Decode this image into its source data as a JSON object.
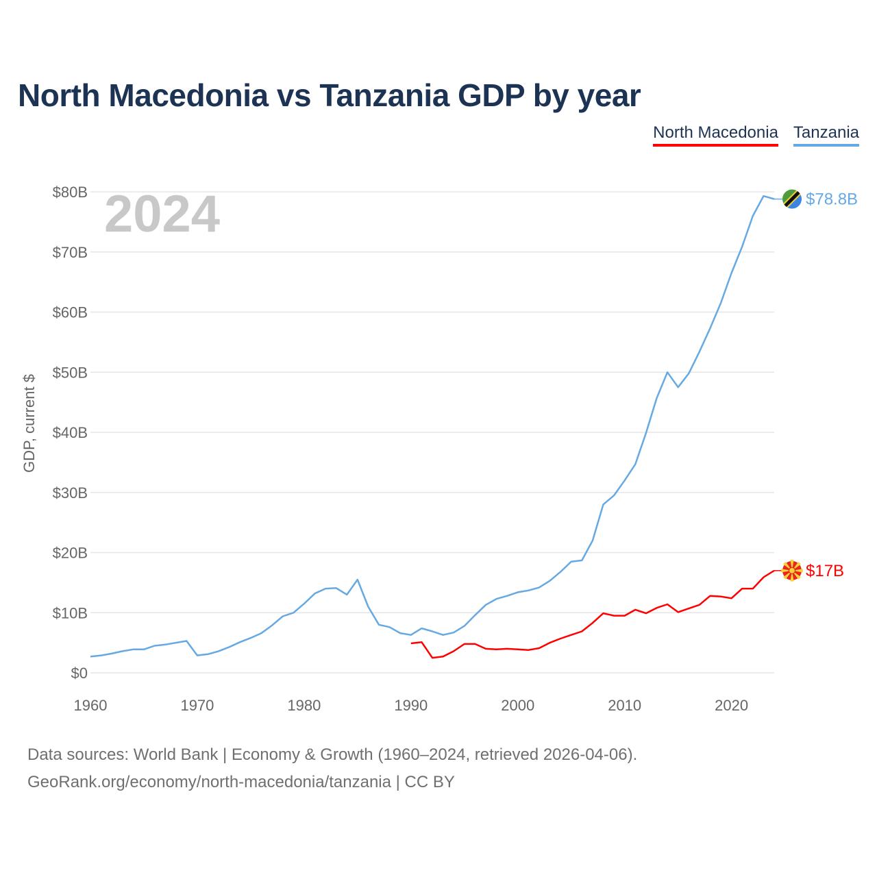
{
  "title": "North Macedonia vs Tanzania GDP by year",
  "legend": [
    {
      "name": "North Macedonia",
      "color": "#ff0000"
    },
    {
      "name": "Tanzania",
      "color": "#66a9e2"
    }
  ],
  "source": {
    "line1": "Data sources: World Bank | Economy & Growth (1960–2024, retrieved 2026-04-06).",
    "line2": "GeoRank.org/economy/north-macedonia/tanzania | CC BY"
  },
  "chart_data": {
    "type": "line",
    "title": "North Macedonia vs Tanzania GDP by year",
    "xlabel": "",
    "ylabel": "GDP, current $",
    "year_watermark": "2024",
    "xlim": [
      1960,
      2024
    ],
    "ylim": [
      0,
      80
    ],
    "y_unit": "billion USD",
    "x_ticks": [
      1960,
      1970,
      1980,
      1990,
      2000,
      2010,
      2020
    ],
    "y_ticks": [
      {
        "value": 0,
        "label": "$0"
      },
      {
        "value": 10,
        "label": "$10B"
      },
      {
        "value": 20,
        "label": "$20B"
      },
      {
        "value": 30,
        "label": "$30B"
      },
      {
        "value": 40,
        "label": "$40B"
      },
      {
        "value": 50,
        "label": "$50B"
      },
      {
        "value": 60,
        "label": "$60B"
      },
      {
        "value": 70,
        "label": "$70B"
      },
      {
        "value": 80,
        "label": "$80B"
      }
    ],
    "grid": true,
    "legend_position": "top-right",
    "series": [
      {
        "name": "Tanzania",
        "color": "#66a9e2",
        "end_label": "$78.8B",
        "flag_icon": "tanzania-flag-icon",
        "x": [
          1960,
          1961,
          1962,
          1963,
          1964,
          1965,
          1966,
          1967,
          1968,
          1969,
          1970,
          1971,
          1972,
          1973,
          1974,
          1975,
          1976,
          1977,
          1978,
          1979,
          1980,
          1981,
          1982,
          1983,
          1984,
          1985,
          1986,
          1987,
          1988,
          1989,
          1990,
          1991,
          1992,
          1993,
          1994,
          1995,
          1996,
          1997,
          1998,
          1999,
          2000,
          2001,
          2002,
          2003,
          2004,
          2005,
          2006,
          2007,
          2008,
          2009,
          2010,
          2011,
          2012,
          2013,
          2014,
          2015,
          2016,
          2017,
          2018,
          2019,
          2020,
          2021,
          2022,
          2023,
          2024
        ],
        "values": [
          2.7,
          2.9,
          3.2,
          3.6,
          3.9,
          3.9,
          4.5,
          4.7,
          5.0,
          5.3,
          2.9,
          3.1,
          3.6,
          4.3,
          5.1,
          5.8,
          6.6,
          7.9,
          9.4,
          10.0,
          11.5,
          13.2,
          14.0,
          14.1,
          13.0,
          15.5,
          11.0,
          8.0,
          7.6,
          6.6,
          6.3,
          7.4,
          6.9,
          6.3,
          6.7,
          7.8,
          9.6,
          11.3,
          12.3,
          12.8,
          13.4,
          13.7,
          14.2,
          15.3,
          16.8,
          18.5,
          18.7,
          22.0,
          28.0,
          29.5,
          32.0,
          34.7,
          39.9,
          45.7,
          50.0,
          47.5,
          49.8,
          53.4,
          57.3,
          61.5,
          66.5,
          70.9,
          76.0,
          79.3,
          78.8
        ]
      },
      {
        "name": "North Macedonia",
        "color": "#ff0000",
        "end_label": "$17B",
        "flag_icon": "north-macedonia-flag-icon",
        "x": [
          1990,
          1991,
          1992,
          1993,
          1994,
          1995,
          1996,
          1997,
          1998,
          1999,
          2000,
          2001,
          2002,
          2003,
          2004,
          2005,
          2006,
          2007,
          2008,
          2009,
          2010,
          2011,
          2012,
          2013,
          2014,
          2015,
          2016,
          2017,
          2018,
          2019,
          2020,
          2021,
          2022,
          2023,
          2024
        ],
        "values": [
          4.9,
          5.1,
          2.5,
          2.7,
          3.6,
          4.8,
          4.8,
          4.0,
          3.9,
          4.0,
          3.9,
          3.8,
          4.1,
          5.0,
          5.7,
          6.3,
          6.9,
          8.3,
          9.9,
          9.5,
          9.5,
          10.5,
          9.9,
          10.8,
          11.4,
          10.1,
          10.7,
          11.3,
          12.8,
          12.7,
          12.4,
          14.0,
          14.0,
          15.9,
          17.0
        ]
      }
    ]
  }
}
